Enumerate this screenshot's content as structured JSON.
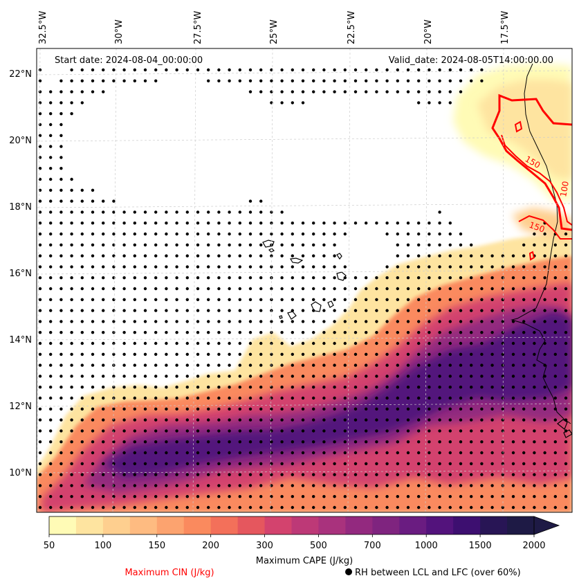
{
  "map": {
    "start_date": "Start date: 2024-08-04_00:00:00",
    "valid_date": "Valid_date: 2024-08-05T14:00:00.00",
    "lon_labels": [
      "32.5°W",
      "30°W",
      "27.5°W",
      "25°W",
      "22.5°W",
      "20°W",
      "17.5°W"
    ],
    "lat_labels": [
      "22°N",
      "20°N",
      "18°N",
      "16°N",
      "14°N",
      "12°N",
      "10°N"
    ],
    "cin_contour_labels": [
      "150",
      "100",
      "150"
    ]
  },
  "colorbar": {
    "ticks": [
      "50",
      "100",
      "150",
      "200",
      "300",
      "500",
      "700",
      "1000",
      "1500",
      "2000"
    ],
    "label": "Maximum CAPE (J/kg)",
    "colors": [
      "#fffbb6",
      "#fee4a0",
      "#fecf8f",
      "#febb81",
      "#fca36f",
      "#fa8a5e",
      "#f3705a",
      "#e5575e",
      "#d3436e",
      "#bd3977",
      "#a9327d",
      "#93297f",
      "#7f247f",
      "#6a1c81",
      "#53137c",
      "#3d0f70",
      "#281555",
      "#1e1a45"
    ]
  },
  "legend": {
    "cin": "Maximum CIN (J/kg)",
    "cin_color": "#ff0000",
    "rh": "RH between LCL and LFC (over 60%)"
  }
}
